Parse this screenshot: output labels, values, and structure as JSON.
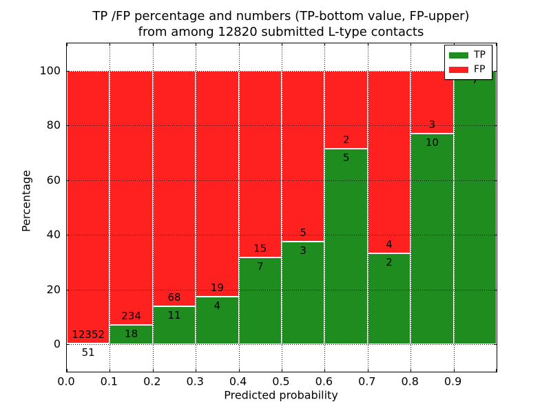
{
  "figure": {
    "title_line1": "TP /FP percentage and numbers (TP-bottom value, FP-upper)",
    "title_line2": "from among 12820 submitted L-type contacts"
  },
  "chart_data": {
    "type": "bar",
    "stacked": true,
    "normalized_to_percent": true,
    "title": "TP /FP percentage and numbers (TP-bottom value, FP-upper) from among 12820 submitted L-type contacts",
    "xlabel": "Predicted probability",
    "ylabel": "Percentage",
    "xlim": [
      0.0,
      1.0
    ],
    "ylim": [
      -10,
      110
    ],
    "bin_edges": [
      0.0,
      0.1,
      0.2,
      0.3,
      0.4,
      0.5,
      0.6,
      0.7,
      0.8,
      0.9,
      1.0
    ],
    "xtick_labels": [
      "0.0",
      "0.1",
      "0.2",
      "0.3",
      "0.4",
      "0.5",
      "0.6",
      "0.7",
      "0.8",
      "0.9"
    ],
    "ytick_values": [
      0,
      20,
      40,
      60,
      80,
      100
    ],
    "grid": "dotted",
    "total_contacts": 12820,
    "series": [
      {
        "name": "TP",
        "position": "bottom",
        "color": "#1e8c1e",
        "counts": [
          51,
          18,
          11,
          4,
          7,
          3,
          5,
          2,
          10,
          7
        ]
      },
      {
        "name": "FP",
        "position": "top",
        "color": "#ff2020",
        "counts": [
          12352,
          234,
          68,
          19,
          15,
          5,
          2,
          4,
          3,
          0
        ]
      }
    ],
    "tp_percent_of_bin": [
      0.41,
      7.14,
      13.92,
      17.39,
      31.82,
      37.5,
      71.43,
      33.33,
      76.92,
      100.0
    ],
    "legend": {
      "position": "upper right",
      "entries": [
        {
          "label": "TP",
          "color": "#1e8c1e"
        },
        {
          "label": "FP",
          "color": "#ff2020"
        }
      ]
    }
  }
}
